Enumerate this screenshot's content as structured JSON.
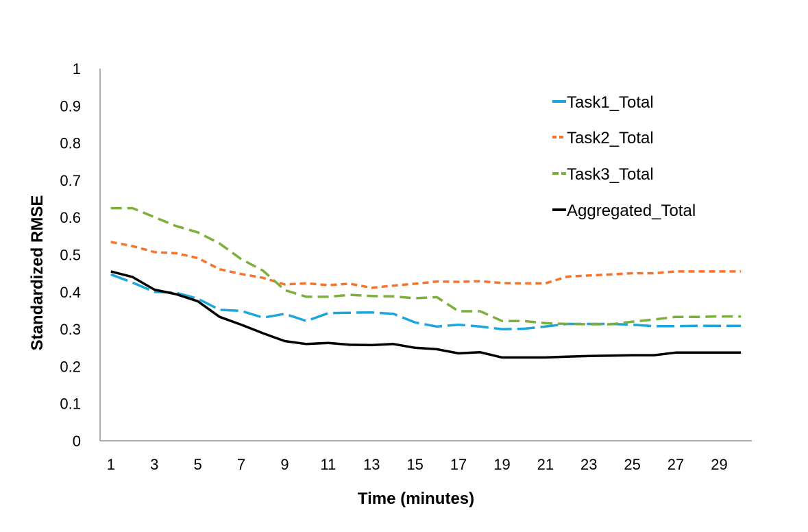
{
  "chart_data": {
    "type": "line",
    "title": "",
    "xlabel": "Time (minutes)",
    "ylabel": "Standardized RMSE",
    "x": [
      1,
      2,
      3,
      4,
      5,
      6,
      7,
      8,
      9,
      10,
      11,
      12,
      13,
      14,
      15,
      16,
      17,
      18,
      19,
      20,
      21,
      22,
      23,
      24,
      25,
      26,
      27,
      28,
      29,
      30
    ],
    "xticks": [
      "1",
      "3",
      "5",
      "7",
      "9",
      "11",
      "13",
      "15",
      "17",
      "19",
      "21",
      "23",
      "25",
      "27",
      "29"
    ],
    "yticks": [
      "0",
      "0.1",
      "0.2",
      "0.3",
      "0.4",
      "0.5",
      "0.6",
      "0.7",
      "0.8",
      "0.9",
      "1"
    ],
    "ylim": [
      0,
      1
    ],
    "grid": false,
    "legend_position": "top-right",
    "series": [
      {
        "name": "Task1_Total",
        "color": "#1ea6dc",
        "style": "long-dash",
        "values": [
          0.447,
          0.425,
          0.4,
          0.398,
          0.382,
          0.352,
          0.349,
          0.331,
          0.341,
          0.322,
          0.343,
          0.344,
          0.345,
          0.341,
          0.318,
          0.307,
          0.312,
          0.307,
          0.3,
          0.301,
          0.307,
          0.314,
          0.314,
          0.314,
          0.312,
          0.308,
          0.308,
          0.309,
          0.309,
          0.309
        ]
      },
      {
        "name": "Task2_Total",
        "color": "#f7742c",
        "style": "short-dash",
        "values": [
          0.534,
          0.523,
          0.507,
          0.504,
          0.491,
          0.461,
          0.448,
          0.438,
          0.42,
          0.423,
          0.418,
          0.422,
          0.411,
          0.417,
          0.422,
          0.428,
          0.427,
          0.429,
          0.424,
          0.423,
          0.423,
          0.441,
          0.444,
          0.447,
          0.45,
          0.45,
          0.455,
          0.455,
          0.455,
          0.455
        ]
      },
      {
        "name": "Task3_Total",
        "color": "#7caf3c",
        "style": "dash",
        "values": [
          0.625,
          0.625,
          0.601,
          0.577,
          0.56,
          0.53,
          0.488,
          0.457,
          0.405,
          0.387,
          0.387,
          0.392,
          0.389,
          0.388,
          0.383,
          0.386,
          0.348,
          0.348,
          0.322,
          0.322,
          0.316,
          0.314,
          0.313,
          0.313,
          0.32,
          0.326,
          0.333,
          0.333,
          0.334,
          0.334
        ]
      },
      {
        "name": "Aggregated_Total",
        "color": "#000000",
        "style": "solid",
        "values": [
          0.455,
          0.44,
          0.406,
          0.394,
          0.375,
          0.333,
          0.312,
          0.289,
          0.268,
          0.26,
          0.263,
          0.258,
          0.257,
          0.26,
          0.25,
          0.246,
          0.235,
          0.238,
          0.224,
          0.224,
          0.224,
          0.226,
          0.228,
          0.229,
          0.23,
          0.23,
          0.237,
          0.237,
          0.237,
          0.237
        ]
      }
    ]
  }
}
